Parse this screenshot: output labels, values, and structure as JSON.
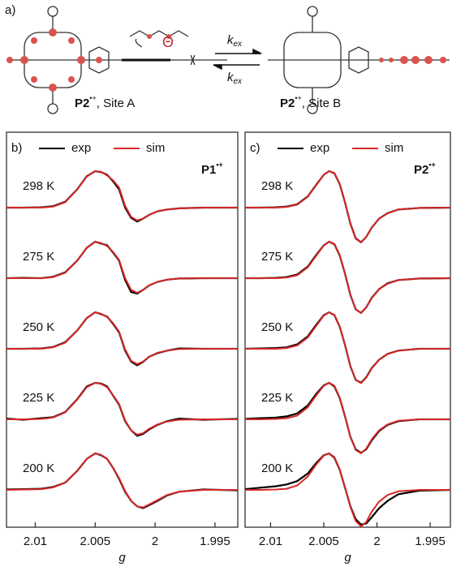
{
  "scheme": {
    "panel_label": "a)",
    "angle": "Θ",
    "rate_symbol": "k",
    "rate_subscript": "ex",
    "site_a": {
      "name": "P2",
      "charge": "•+",
      "site": ", Site A"
    },
    "site_b": {
      "name": "P2",
      "charge": "•+",
      "site": ", Site B"
    }
  },
  "chart_data": [
    {
      "type": "line",
      "panel_label": "b)",
      "compound": {
        "name": "P1",
        "charge": "•+"
      },
      "xlabel": "g",
      "xlim": [
        2.0124,
        1.9931
      ],
      "xticks": [
        2.01,
        2.005,
        2,
        1.995
      ],
      "ylim": [
        -1.2,
        1.2
      ],
      "temperatures": [
        "298 K",
        "275 K",
        "250 K",
        "225 K",
        "200 K"
      ],
      "x": [
        2.0124,
        2.011,
        2.0095,
        2.0085,
        2.0075,
        2.0065,
        2.0057,
        2.005,
        2.0045,
        2.004,
        2.0035,
        2.003,
        2.0025,
        2.002,
        2.0015,
        2.001,
        2.0005,
        1.9998,
        1.999,
        1.998,
        1.996,
        1.9931
      ],
      "series": [
        {
          "name": "exp",
          "color": "#000000",
          "values": [
            [
              0,
              0,
              0.01,
              0.04,
              0.16,
              0.5,
              0.86,
              1,
              0.97,
              0.9,
              0.72,
              0.5,
              0.0,
              -0.28,
              -0.38,
              -0.3,
              -0.2,
              -0.1,
              -0.05,
              -0.02,
              0,
              0
            ],
            [
              0,
              0.01,
              0,
              0.04,
              0.16,
              0.48,
              0.83,
              1,
              0.95,
              0.9,
              0.7,
              0.48,
              -0.05,
              -0.38,
              -0.42,
              -0.32,
              -0.2,
              -0.1,
              -0.04,
              -0.01,
              0,
              0
            ],
            [
              0,
              0,
              0.01,
              0.05,
              0.18,
              0.5,
              0.84,
              1,
              0.95,
              0.88,
              0.68,
              0.45,
              -0.05,
              -0.35,
              -0.45,
              -0.36,
              -0.22,
              -0.12,
              -0.05,
              0.01,
              0,
              0
            ],
            [
              0.02,
              -0.01,
              0.03,
              0.06,
              0.2,
              0.55,
              0.9,
              1,
              0.98,
              0.9,
              0.65,
              0.4,
              -0.05,
              -0.3,
              -0.45,
              -0.4,
              -0.28,
              -0.15,
              -0.05,
              0.02,
              -0.01,
              0.01
            ],
            [
              0.01,
              0.02,
              0.03,
              0.08,
              0.2,
              0.52,
              0.85,
              1,
              0.95,
              0.85,
              0.6,
              0.3,
              -0.05,
              -0.3,
              -0.45,
              -0.5,
              -0.42,
              -0.3,
              -0.15,
              -0.05,
              0.01,
              -0.01
            ]
          ]
        },
        {
          "name": "sim",
          "color": "#d62728",
          "values": [
            [
              0,
              0,
              0,
              0.03,
              0.15,
              0.5,
              0.85,
              1,
              0.98,
              0.88,
              0.75,
              0.55,
              0.05,
              -0.25,
              -0.35,
              -0.3,
              -0.2,
              -0.1,
              -0.05,
              -0.02,
              0,
              0
            ],
            [
              0,
              0,
              0,
              0.03,
              0.15,
              0.48,
              0.83,
              1,
              0.96,
              0.88,
              0.72,
              0.5,
              0.0,
              -0.32,
              -0.4,
              -0.32,
              -0.2,
              -0.1,
              -0.04,
              -0.01,
              0,
              0
            ],
            [
              0,
              0,
              0,
              0.04,
              0.17,
              0.5,
              0.84,
              1,
              0.96,
              0.87,
              0.7,
              0.47,
              -0.02,
              -0.33,
              -0.42,
              -0.35,
              -0.22,
              -0.11,
              -0.05,
              -0.01,
              0,
              0
            ],
            [
              0,
              0,
              0.01,
              0.05,
              0.19,
              0.54,
              0.88,
              1,
              0.97,
              0.88,
              0.66,
              0.42,
              -0.03,
              -0.3,
              -0.42,
              -0.38,
              -0.26,
              -0.14,
              -0.06,
              -0.01,
              0,
              0
            ],
            [
              0,
              0.01,
              0.02,
              0.07,
              0.2,
              0.52,
              0.85,
              1,
              0.96,
              0.85,
              0.6,
              0.32,
              -0.03,
              -0.3,
              -0.45,
              -0.48,
              -0.4,
              -0.28,
              -0.14,
              -0.05,
              0,
              0
            ]
          ]
        }
      ]
    },
    {
      "type": "line",
      "panel_label": "c)",
      "compound": {
        "name": "P2",
        "charge": "•+"
      },
      "xlabel": "g",
      "xlim": [
        2.0124,
        1.9931
      ],
      "xticks": [
        2.01,
        2.005,
        2,
        1.995
      ],
      "ylim": [
        -1.2,
        1.2
      ],
      "temperatures": [
        "298 K",
        "275 K",
        "250 K",
        "225 K",
        "200 K"
      ],
      "x": [
        2.0124,
        2.011,
        2.0095,
        2.0085,
        2.0075,
        2.0065,
        2.0057,
        2.005,
        2.0045,
        2.004,
        2.0035,
        2.003,
        2.0025,
        2.002,
        2.0015,
        2.001,
        2.0005,
        1.9998,
        1.999,
        1.998,
        1.996,
        1.9931
      ],
      "series": [
        {
          "name": "exp",
          "color": "#000000",
          "values": [
            [
              0,
              0,
              0.01,
              0.03,
              0.09,
              0.31,
              0.63,
              0.9,
              1,
              0.94,
              0.64,
              0.14,
              -0.44,
              -0.84,
              -0.95,
              -0.8,
              -0.55,
              -0.3,
              -0.15,
              -0.05,
              -0.01,
              0
            ],
            [
              0,
              0,
              0.01,
              0.03,
              0.1,
              0.32,
              0.64,
              0.9,
              1,
              0.93,
              0.62,
              0.12,
              -0.46,
              -0.85,
              -0.95,
              -0.8,
              -0.54,
              -0.3,
              -0.14,
              -0.05,
              -0.01,
              0
            ],
            [
              0,
              0.01,
              0.02,
              0.04,
              0.12,
              0.34,
              0.66,
              0.92,
              1,
              0.92,
              0.6,
              0.1,
              -0.48,
              -0.85,
              -0.93,
              -0.78,
              -0.53,
              -0.3,
              -0.14,
              -0.05,
              0,
              0
            ],
            [
              0.01,
              0.03,
              0.05,
              0.08,
              0.16,
              0.38,
              0.7,
              0.93,
              1,
              0.9,
              0.58,
              0.08,
              -0.48,
              -0.82,
              -0.92,
              -0.82,
              -0.58,
              -0.32,
              -0.15,
              -0.05,
              0,
              0
            ],
            [
              0.02,
              0.06,
              0.1,
              0.15,
              0.24,
              0.45,
              0.74,
              0.95,
              1,
              0.88,
              0.55,
              0.06,
              -0.45,
              -0.8,
              -0.95,
              -0.92,
              -0.75,
              -0.5,
              -0.3,
              -0.12,
              -0.02,
              0
            ]
          ]
        },
        {
          "name": "sim",
          "color": "#d62728",
          "values": [
            [
              0,
              0,
              0,
              0.02,
              0.08,
              0.3,
              0.62,
              0.9,
              1,
              0.95,
              0.65,
              0.15,
              -0.45,
              -0.85,
              -0.95,
              -0.8,
              -0.55,
              -0.3,
              -0.15,
              -0.05,
              -0.01,
              0
            ],
            [
              0,
              0,
              0,
              0.02,
              0.08,
              0.3,
              0.62,
              0.9,
              1,
              0.94,
              0.63,
              0.13,
              -0.46,
              -0.85,
              -0.95,
              -0.8,
              -0.55,
              -0.3,
              -0.15,
              -0.05,
              -0.01,
              0
            ],
            [
              0,
              0,
              0,
              0.02,
              0.09,
              0.31,
              0.63,
              0.91,
              1,
              0.93,
              0.61,
              0.11,
              -0.47,
              -0.85,
              -0.94,
              -0.79,
              -0.54,
              -0.3,
              -0.14,
              -0.05,
              0,
              0
            ],
            [
              0,
              0,
              0.01,
              0.03,
              0.1,
              0.33,
              0.66,
              0.92,
              1,
              0.92,
              0.59,
              0.09,
              -0.48,
              -0.84,
              -0.93,
              -0.8,
              -0.55,
              -0.3,
              -0.14,
              -0.04,
              0,
              0
            ],
            [
              0,
              0,
              0.01,
              0.03,
              0.12,
              0.37,
              0.7,
              0.94,
              1,
              0.9,
              0.56,
              0.06,
              -0.47,
              -0.85,
              -1.0,
              -0.88,
              -0.6,
              -0.32,
              -0.14,
              -0.04,
              0,
              0
            ]
          ]
        }
      ]
    }
  ]
}
